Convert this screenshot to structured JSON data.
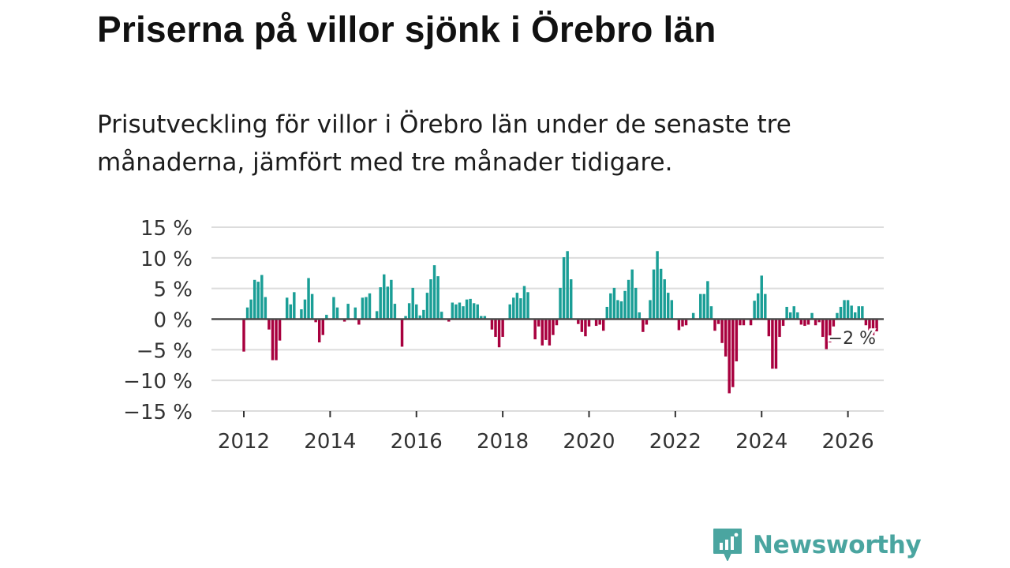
{
  "title": "Priserna på villor sjönk i Örebro län",
  "subtitle": "Prisutveckling för villor i Örebro län under de senaste tre månaderna, jämfört med tre månader tidigare.",
  "brand": {
    "name": "Newsworthy",
    "color": "#4aa5a0"
  },
  "chart_data": {
    "type": "bar",
    "title": "Priserna på villor sjönk i Örebro län",
    "xlabel": "",
    "ylabel": "",
    "ylim": [
      -15,
      15
    ],
    "xlim": [
      2011.25,
      2026.83
    ],
    "y_ticks": [
      15,
      10,
      5,
      0,
      -5,
      -10,
      -15
    ],
    "y_tick_labels": [
      "15 %",
      "10 %",
      "5 %",
      "0 %",
      "−5 %",
      "−10 %",
      "−15 %"
    ],
    "x_ticks": [
      2012,
      2014,
      2016,
      2018,
      2020,
      2022,
      2024,
      2026
    ],
    "x_tick_labels": [
      "2012",
      "2014",
      "2016",
      "2018",
      "2020",
      "2022",
      "2024",
      "2026"
    ],
    "grid": true,
    "positive_color": "#1a9e96",
    "negative_color": "#a8003e",
    "start": {
      "year": 2012,
      "month": 1
    },
    "end_label": "−2 %",
    "values": [
      -5.3,
      1.9,
      3.2,
      6.4,
      6.1,
      7.2,
      3.6,
      -1.7,
      -6.7,
      -6.7,
      -3.5,
      0,
      3.5,
      2.4,
      4.4,
      0,
      1.6,
      3.2,
      6.7,
      4.1,
      -0.5,
      -3.8,
      -2.6,
      0.7,
      0,
      3.6,
      1.9,
      0,
      -0.4,
      2.5,
      0,
      1.9,
      -0.9,
      3.5,
      3.6,
      4.2,
      0,
      1.3,
      5.2,
      7.3,
      5.3,
      6.4,
      2.5,
      0,
      -4.5,
      0.5,
      2.6,
      5.1,
      2.4,
      0.6,
      1.5,
      4.3,
      6.5,
      8.8,
      7,
      1.2,
      0,
      -0.4,
      2.7,
      2.4,
      2.7,
      2.1,
      3.2,
      3.3,
      2.6,
      2.4,
      0.5,
      0.5,
      0,
      -1.7,
      -2.9,
      -4.6,
      -2.9,
      0,
      2.4,
      3.5,
      4.3,
      3.4,
      5.4,
      4.4,
      0,
      -3.3,
      -1.2,
      -4.3,
      -3.4,
      -4.3,
      -2.6,
      -1,
      5.1,
      10.1,
      11.1,
      6.5,
      0,
      -0.8,
      -2.1,
      -2.8,
      -1.2,
      0,
      -1.1,
      -0.9,
      -1.9,
      2,
      4.2,
      5.1,
      3.1,
      2.9,
      4.6,
      6.4,
      8.1,
      5.1,
      1.1,
      -2.1,
      -0.9,
      3.1,
      8.1,
      11.1,
      8.2,
      6.5,
      4.3,
      3.1,
      0,
      -1.8,
      -1.2,
      -1,
      0,
      1,
      0,
      4.1,
      4.1,
      6.2,
      2.1,
      -1.9,
      -0.8,
      -3.9,
      -6.1,
      -12.1,
      -11.1,
      -6.9,
      -1,
      -1,
      0,
      -1,
      3,
      4.2,
      7.1,
      4.1,
      -2.8,
      -8.1,
      -8.1,
      -2.9,
      -1.1,
      2,
      1.1,
      2.1,
      1.1,
      -0.9,
      -1.1,
      -0.9,
      1,
      -1,
      -0.5,
      -2.9,
      -4.9,
      -3.8,
      -1.2,
      1,
      2,
      3.1,
      3.1,
      2.2,
      1.1,
      2.1,
      2.1,
      -1,
      -2.7,
      -2.7,
      -2
    ]
  }
}
